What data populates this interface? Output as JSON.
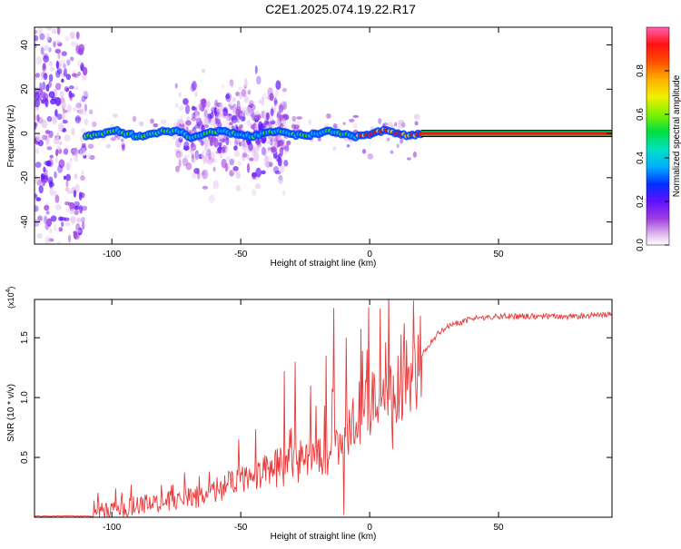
{
  "title": "C2E1.2025.074.19.22.R17",
  "chart_data": [
    {
      "type": "heatmap",
      "xlabel": "Height of straight line (km)",
      "ylabel": "Frequency (Hz)",
      "xlim": [
        -130,
        94
      ],
      "ylim": [
        -50,
        48
      ],
      "x_ticks": [
        "-100",
        "-50",
        "0",
        "50"
      ],
      "y_ticks": [
        "40",
        "20",
        "0",
        "-20",
        "-40"
      ],
      "colorbar": {
        "label": "Normalized spectral amplitude",
        "range": [
          0,
          1
        ],
        "ticks": [
          "0.0",
          "0.2",
          "0.4",
          "0.6",
          "0.8"
        ],
        "colors": [
          "#e6c8f0",
          "#a040e0",
          "#6010ff",
          "#0040ff",
          "#00c0ff",
          "#00e080",
          "#40f000",
          "#c0f000",
          "#ffd000",
          "#ff8000",
          "#ff1010",
          "#ff60b0"
        ]
      },
      "ridge_center_hz": 0,
      "ridge_start_km": -110,
      "ridge_solid_from_km": 20,
      "grid": false
    },
    {
      "type": "line",
      "xlabel": "Height of straight line (km)",
      "ylabel": "SNR (10 * v/v)",
      "multiplier": "(x10",
      "multiplier_exp": "4",
      "multiplier_close": ")",
      "xlim": [
        -130,
        94
      ],
      "ylim": [
        0,
        1.82
      ],
      "x_ticks": [
        "-100",
        "-50",
        "0",
        "50"
      ],
      "y_ticks": [
        "1.5",
        "1.0",
        "0.5"
      ],
      "line_color": "#e83a3a",
      "anchors": {
        "x": [
          -130,
          -108,
          -100,
          -90,
          -80,
          -70,
          -60,
          -50,
          -40,
          -30,
          -20,
          -10,
          -5,
          0,
          5,
          10,
          15,
          20,
          25,
          30,
          40,
          50,
          60,
          70,
          80,
          94
        ],
        "y": [
          0.01,
          0.01,
          0.06,
          0.1,
          0.12,
          0.15,
          0.22,
          0.3,
          0.38,
          0.45,
          0.52,
          0.6,
          0.85,
          0.95,
          1.0,
          1.05,
          1.15,
          1.35,
          1.5,
          1.6,
          1.66,
          1.68,
          1.68,
          1.68,
          1.68,
          1.69
        ]
      },
      "spikes": [
        {
          "x": -33,
          "y": 1.22
        },
        {
          "x": -29,
          "y": 1.3
        },
        {
          "x": -23,
          "y": 1.1
        },
        {
          "x": -17,
          "y": 1.35
        },
        {
          "x": -14,
          "y": 1.75
        },
        {
          "x": -10,
          "y": 0.02
        },
        {
          "x": -9,
          "y": 1.5
        },
        {
          "x": -1,
          "y": 1.4
        },
        {
          "x": 9,
          "y": 1.2
        },
        {
          "x": 9,
          "y": 0.57
        },
        {
          "x": 17,
          "y": 1.81
        }
      ]
    }
  ]
}
